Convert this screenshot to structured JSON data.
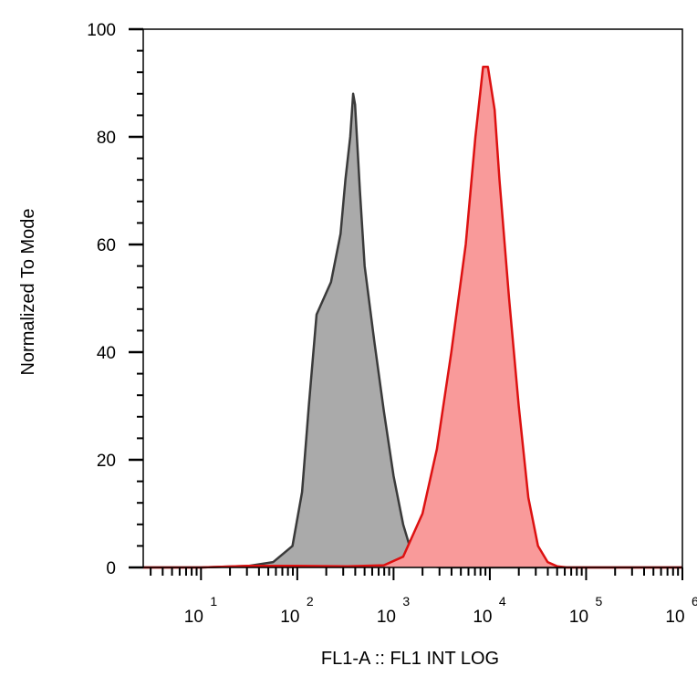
{
  "chart_data": {
    "type": "area",
    "xlabel": "FL1-A :: FL1 INT LOG",
    "ylabel": "Normalized To Mode",
    "xscale": "log",
    "xlim_log10": [
      0.4,
      6.0
    ],
    "ylim": [
      0,
      100
    ],
    "y_ticks": [
      0,
      20,
      40,
      60,
      80,
      100
    ],
    "y_tick_labels": [
      "0",
      "20",
      "40",
      "60",
      "80",
      "100"
    ],
    "x_ticks_log10": [
      1,
      2,
      3,
      4,
      5,
      6
    ],
    "x_tick_base": "10",
    "x_tick_exponents": [
      "1",
      "2",
      "3",
      "4",
      "5",
      "6"
    ],
    "grid": false,
    "legend": "none",
    "series": [
      {
        "color": "#3a3a3a",
        "fill": "#aaaaaa",
        "x_log10": [
          0.4,
          1.0,
          1.5,
          1.75,
          1.95,
          2.05,
          2.12,
          2.2,
          2.3,
          2.35,
          2.45,
          2.5,
          2.55,
          2.58,
          2.6,
          2.65,
          2.7,
          2.8,
          2.9,
          3.0,
          3.1,
          3.2,
          3.3,
          3.4,
          3.5,
          6.0
        ],
        "y": [
          0,
          0,
          0.3,
          1,
          4,
          14,
          30,
          47,
          51,
          53,
          62,
          72,
          80,
          88,
          86,
          70,
          56,
          42,
          29,
          17,
          8,
          2,
          0.5,
          0.2,
          0,
          0
        ]
      },
      {
        "color": "#dd1111",
        "fill": "#f99a9a",
        "x_log10": [
          0.4,
          1.0,
          1.5,
          2.0,
          2.5,
          2.9,
          3.1,
          3.3,
          3.45,
          3.6,
          3.75,
          3.85,
          3.93,
          3.98,
          4.05,
          4.1,
          4.2,
          4.3,
          4.4,
          4.5,
          4.6,
          4.7,
          4.8,
          6.0
        ],
        "y": [
          0,
          0,
          0.3,
          0.3,
          0.2,
          0.4,
          2,
          10,
          22,
          40,
          60,
          80,
          93,
          93,
          85,
          72,
          50,
          30,
          13,
          4,
          1,
          0.2,
          0,
          0
        ]
      }
    ]
  }
}
